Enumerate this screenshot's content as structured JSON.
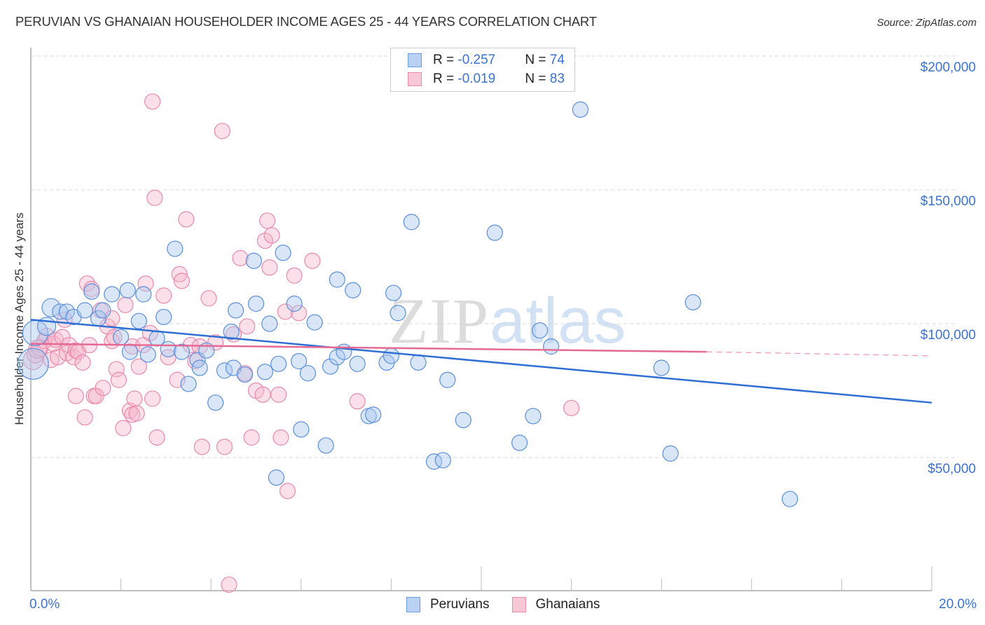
{
  "header": {
    "title": "PERUVIAN VS GHANAIAN HOUSEHOLDER INCOME AGES 25 - 44 YEARS CORRELATION CHART",
    "source": "Source: ZipAtlas.com"
  },
  "legend": {
    "rows": [
      {
        "r_label": "R = ",
        "r_value": "-0.257",
        "n_label": "N = ",
        "n_value": "74",
        "swatch_fill": "#b9d2f3",
        "swatch_stroke": "#6b9be0"
      },
      {
        "r_label": "R = ",
        "r_value": "-0.019",
        "n_label": "N = ",
        "n_value": "83",
        "swatch_fill": "#f9c8d6",
        "swatch_stroke": "#e88aa8"
      }
    ]
  },
  "bottom_legend": [
    {
      "label": "Peruvians",
      "fill": "#b9d2f3",
      "stroke": "#6b9be0"
    },
    {
      "label": "Ghanaians",
      "fill": "#f9c8d6",
      "stroke": "#e88aa8"
    }
  ],
  "watermark": {
    "zip": "ZIP",
    "atlas": "atlas"
  },
  "colors": {
    "peruvian_fill": "rgba(168,199,240,0.45)",
    "peruvian_stroke": "#5b8fdc",
    "peruvian_line": "#2f6fd3",
    "ghanaian_fill": "rgba(246,182,202,0.42)",
    "ghanaian_stroke": "#e98aa9",
    "ghanaian_line": "#e46a93",
    "tick_label": "#3b72d0",
    "grid": "#d9d9d9"
  },
  "chart_data": {
    "type": "scatter",
    "title": "PERUVIAN VS GHANAIAN HOUSEHOLDER INCOME AGES 25 - 44 YEARS CORRELATION CHART",
    "xlabel": "",
    "ylabel": "Householder Income Ages 25 - 44 years",
    "xlim": [
      0,
      20
    ],
    "ylim": [
      0,
      205000
    ],
    "x_tick_labels": [
      "0.0%",
      "20.0%"
    ],
    "y_tick_labels": [
      "$50,000",
      "$100,000",
      "$150,000",
      "$200,000"
    ],
    "y_ticks": [
      50000,
      100000,
      150000,
      200000
    ],
    "grid": true,
    "legend_position": "top-center",
    "series": [
      {
        "name": "Peruvians",
        "R": -0.257,
        "N": 74,
        "trendline": {
          "x": [
            0,
            20
          ],
          "y": [
            101500,
            70500
          ]
        },
        "points": [
          [
            0.05,
            85000,
            22
          ],
          [
            0.1,
            96500,
            18
          ],
          [
            0.35,
            99000,
            13
          ],
          [
            0.45,
            106000,
            13
          ],
          [
            0.65,
            104500,
            11
          ],
          [
            0.8,
            104500,
            11
          ],
          [
            0.95,
            102500,
            11
          ],
          [
            1.2,
            105000,
            11
          ],
          [
            1.35,
            112000,
            11
          ],
          [
            1.5,
            102000,
            11
          ],
          [
            1.6,
            105000,
            11
          ],
          [
            1.8,
            111000,
            11
          ],
          [
            2.0,
            95000,
            11
          ],
          [
            2.15,
            112500,
            11
          ],
          [
            2.2,
            89500,
            11
          ],
          [
            2.4,
            101000,
            11
          ],
          [
            2.5,
            111000,
            11
          ],
          [
            2.6,
            88500,
            11
          ],
          [
            2.8,
            94500,
            11
          ],
          [
            2.95,
            102500,
            11
          ],
          [
            3.05,
            90500,
            11
          ],
          [
            3.2,
            128000,
            11
          ],
          [
            3.35,
            89500,
            11
          ],
          [
            3.5,
            77500,
            11
          ],
          [
            3.7,
            86500,
            11
          ],
          [
            3.75,
            83500,
            11
          ],
          [
            3.9,
            90000,
            11
          ],
          [
            4.1,
            70500,
            11
          ],
          [
            4.3,
            82500,
            11
          ],
          [
            4.45,
            97000,
            11
          ],
          [
            4.5,
            83500,
            11
          ],
          [
            4.55,
            105000,
            11
          ],
          [
            4.75,
            81000,
            11
          ],
          [
            4.95,
            123500,
            11
          ],
          [
            5.0,
            107500,
            11
          ],
          [
            5.2,
            82000,
            11
          ],
          [
            5.3,
            100000,
            11
          ],
          [
            5.45,
            42500,
            11
          ],
          [
            5.5,
            85000,
            11
          ],
          [
            5.6,
            126500,
            11
          ],
          [
            5.85,
            107500,
            11
          ],
          [
            5.95,
            86000,
            11
          ],
          [
            6.0,
            60500,
            11
          ],
          [
            6.15,
            81500,
            11
          ],
          [
            6.3,
            100500,
            11
          ],
          [
            6.55,
            54500,
            11
          ],
          [
            6.65,
            84000,
            11
          ],
          [
            6.8,
            87500,
            11
          ],
          [
            6.8,
            116500,
            11
          ],
          [
            6.95,
            89500,
            11
          ],
          [
            7.15,
            112500,
            11
          ],
          [
            7.25,
            85000,
            11
          ],
          [
            7.5,
            65500,
            11
          ],
          [
            7.6,
            66000,
            11
          ],
          [
            7.9,
            85500,
            11
          ],
          [
            8.0,
            88000,
            11
          ],
          [
            8.05,
            111500,
            11
          ],
          [
            8.15,
            104000,
            11
          ],
          [
            8.45,
            138000,
            11
          ],
          [
            8.6,
            85500,
            11
          ],
          [
            8.95,
            48500,
            11
          ],
          [
            9.15,
            49000,
            11
          ],
          [
            9.25,
            79000,
            11
          ],
          [
            9.6,
            64000,
            11
          ],
          [
            10.3,
            134000,
            11
          ],
          [
            10.85,
            55500,
            11
          ],
          [
            11.15,
            65500,
            11
          ],
          [
            11.3,
            97500,
            11
          ],
          [
            11.55,
            91500,
            11
          ],
          [
            12.2,
            180000,
            11
          ],
          [
            14.0,
            83500,
            11
          ],
          [
            14.2,
            51500,
            11
          ],
          [
            14.7,
            108000,
            11
          ],
          [
            16.85,
            34500,
            11
          ]
        ]
      },
      {
        "name": "Ghanaians",
        "R": -0.019,
        "N": 83,
        "trendline": {
          "x": [
            0,
            15
          ],
          "y": [
            92500,
            89500
          ],
          "dashed_extension": {
            "x": [
              15,
              20
            ],
            "y": [
              89500,
              88000
            ]
          }
        },
        "points": [
          [
            0.05,
            86500,
            14
          ],
          [
            0.1,
            88500,
            12
          ],
          [
            0.2,
            91000,
            12
          ],
          [
            0.3,
            93500,
            11
          ],
          [
            0.35,
            95500,
            11
          ],
          [
            0.45,
            86500,
            11
          ],
          [
            0.5,
            92500,
            11
          ],
          [
            0.55,
            94000,
            11
          ],
          [
            0.6,
            87500,
            11
          ],
          [
            0.7,
            95000,
            11
          ],
          [
            0.75,
            101500,
            11
          ],
          [
            0.8,
            89000,
            11
          ],
          [
            0.85,
            92000,
            11
          ],
          [
            0.95,
            87500,
            11
          ],
          [
            1.0,
            90000,
            11
          ],
          [
            1.05,
            89500,
            11
          ],
          [
            1.15,
            85500,
            11
          ],
          [
            1.2,
            65000,
            11
          ],
          [
            1.3,
            92000,
            11
          ],
          [
            1.25,
            115000,
            11
          ],
          [
            1.35,
            113000,
            11
          ],
          [
            1.4,
            73000,
            11
          ],
          [
            1.45,
            73000,
            11
          ],
          [
            1.55,
            105000,
            11
          ],
          [
            1.6,
            76000,
            11
          ],
          [
            1.7,
            99000,
            11
          ],
          [
            1.8,
            102000,
            11
          ],
          [
            1.8,
            93500,
            11
          ],
          [
            1.85,
            95000,
            11
          ],
          [
            1.9,
            83000,
            11
          ],
          [
            1.95,
            79000,
            11
          ],
          [
            2.05,
            61000,
            11
          ],
          [
            2.1,
            107000,
            11
          ],
          [
            2.2,
            67500,
            11
          ],
          [
            2.25,
            66000,
            11
          ],
          [
            2.25,
            91500,
            11
          ],
          [
            2.3,
            72000,
            11
          ],
          [
            2.35,
            66500,
            11
          ],
          [
            2.4,
            84000,
            11
          ],
          [
            2.5,
            92000,
            11
          ],
          [
            2.55,
            115000,
            11
          ],
          [
            2.65,
            96500,
            11
          ],
          [
            2.7,
            72000,
            11
          ],
          [
            2.7,
            183000,
            11
          ],
          [
            2.75,
            147000,
            11
          ],
          [
            2.8,
            57500,
            11
          ],
          [
            2.95,
            110500,
            11
          ],
          [
            3.05,
            87500,
            11
          ],
          [
            3.25,
            79000,
            11
          ],
          [
            3.3,
            118500,
            11
          ],
          [
            3.35,
            116000,
            11
          ],
          [
            3.45,
            139000,
            11
          ],
          [
            3.55,
            92000,
            11
          ],
          [
            3.65,
            86000,
            11
          ],
          [
            3.75,
            91500,
            11
          ],
          [
            3.8,
            54000,
            11
          ],
          [
            3.95,
            109500,
            11
          ],
          [
            4.1,
            93000,
            11
          ],
          [
            4.25,
            172000,
            11
          ],
          [
            4.3,
            54000,
            11
          ],
          [
            4.4,
            2500,
            11
          ],
          [
            4.5,
            96000,
            11
          ],
          [
            4.65,
            124500,
            11
          ],
          [
            4.75,
            81500,
            11
          ],
          [
            4.8,
            99000,
            11
          ],
          [
            4.9,
            57500,
            11
          ],
          [
            5.0,
            75000,
            11
          ],
          [
            5.15,
            73500,
            11
          ],
          [
            5.2,
            131000,
            11
          ],
          [
            5.25,
            138500,
            11
          ],
          [
            5.3,
            121000,
            11
          ],
          [
            5.35,
            133000,
            11
          ],
          [
            5.5,
            73500,
            11
          ],
          [
            5.55,
            57500,
            11
          ],
          [
            5.65,
            104500,
            11
          ],
          [
            5.7,
            37500,
            11
          ],
          [
            5.85,
            118000,
            11
          ],
          [
            5.95,
            104000,
            11
          ],
          [
            6.25,
            123500,
            11
          ],
          [
            7.25,
            71000,
            11
          ],
          [
            12.0,
            68500,
            11
          ],
          [
            0.15,
            90500,
            13
          ],
          [
            1.0,
            73000,
            11
          ]
        ]
      }
    ]
  }
}
